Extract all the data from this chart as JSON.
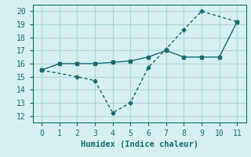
{
  "line1_x": [
    0,
    1,
    2,
    3,
    4,
    5,
    6,
    7,
    8,
    9,
    10,
    11
  ],
  "line1_y": [
    15.5,
    16.0,
    16.0,
    16.0,
    16.1,
    16.2,
    16.5,
    17.0,
    16.5,
    16.5,
    16.5,
    19.2
  ],
  "line2_x": [
    0,
    2,
    3,
    4,
    5,
    6,
    7,
    8,
    9,
    11
  ],
  "line2_y": [
    15.5,
    15.0,
    14.7,
    12.25,
    13.0,
    15.7,
    17.1,
    18.6,
    20.0,
    19.2
  ],
  "color": "#1a6b6b",
  "bg_color": "#d6f0f0",
  "grid_color": "#b0d8d8",
  "xlabel": "Humidex (Indice chaleur)",
  "ylim": [
    11.5,
    20.5
  ],
  "xlim": [
    -0.5,
    11.5
  ],
  "yticks": [
    12,
    13,
    14,
    15,
    16,
    17,
    18,
    19,
    20
  ],
  "xticks": [
    0,
    1,
    2,
    3,
    4,
    5,
    6,
    7,
    8,
    9,
    10,
    11
  ]
}
